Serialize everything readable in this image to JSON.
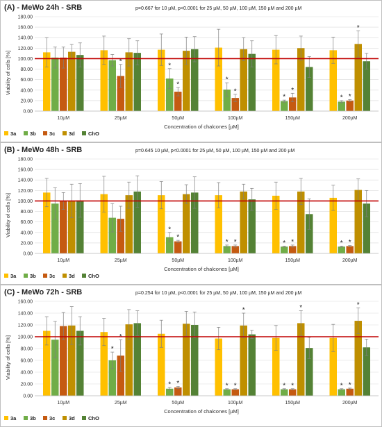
{
  "chart_data": [
    {
      "type": "bar",
      "title": "(A) - MeWo 24h - SRB",
      "subtitle": "p=0.667 for 10 µM, p<0.0001 for 25 µM, 50 µM, 100 µM, 150 µM and 200 µM",
      "xlabel": "Concentration of chalcones [µM]",
      "ylabel": "Viability of cells [%]",
      "ylim": [
        0,
        180
      ],
      "yticks": [
        "0.00",
        "20.00",
        "40.00",
        "60.00",
        "80.00",
        "100.00",
        "120.00",
        "140.00",
        "160.00",
        "180.00"
      ],
      "reference_line": 100,
      "categories": [
        "10µM",
        "25µM",
        "50µM",
        "100µM",
        "150µM",
        "200µM"
      ],
      "series": [
        {
          "name": "3a",
          "color": "#ffc000",
          "values": [
            112,
            116,
            117,
            121,
            117,
            116
          ],
          "errors": [
            28,
            27,
            30,
            35,
            27,
            25
          ]
        },
        {
          "name": "3b",
          "color": "#70ad47",
          "values": [
            102,
            97,
            62,
            41,
            19,
            18
          ],
          "errors": [
            20,
            11,
            19,
            13,
            2,
            2
          ]
        },
        {
          "name": "3c",
          "color": "#c55a11",
          "values": [
            102,
            67,
            37,
            25,
            26,
            20
          ],
          "errors": [
            20,
            22,
            8,
            7,
            8,
            2
          ]
        },
        {
          "name": "3d",
          "color": "#bf8f00",
          "values": [
            113,
            112,
            115,
            118,
            120,
            128
          ],
          "errors": [
            14,
            26,
            26,
            22,
            23,
            25
          ]
        },
        {
          "name": "ChO",
          "color": "#548235",
          "values": [
            107,
            111,
            118,
            109,
            84,
            95
          ],
          "errors": [
            23,
            23,
            24,
            25,
            20,
            15
          ]
        }
      ],
      "significant": [
        {
          "category": "25µM",
          "series": "3c"
        },
        {
          "category": "50µM",
          "series": "3b"
        },
        {
          "category": "50µM",
          "series": "3c"
        },
        {
          "category": "100µM",
          "series": "3b"
        },
        {
          "category": "100µM",
          "series": "3c"
        },
        {
          "category": "150µM",
          "series": "3b"
        },
        {
          "category": "150µM",
          "series": "3c"
        },
        {
          "category": "200µM",
          "series": "3b"
        },
        {
          "category": "200µM",
          "series": "3c"
        },
        {
          "category": "200µM",
          "series": "3d"
        }
      ],
      "legend": "bottom-left",
      "grid": true
    },
    {
      "type": "bar",
      "title": "(B) - MeWo 48h - SRB",
      "subtitle": "p=0.645 10 µM, p<0.0001 for 25 µM, 50 µM, 100 µM, 150 µM and 200 µM",
      "xlabel": "Concentration of chalcones [µM]",
      "ylabel": "Viability of cells [%]",
      "ylim": [
        0,
        180
      ],
      "yticks": [
        "0.00",
        "20.00",
        "40.00",
        "60.00",
        "80.00",
        "100.00",
        "120.00",
        "140.00",
        "160.00",
        "180.00"
      ],
      "reference_line": 100,
      "categories": [
        "10µM",
        "25µM",
        "50µM",
        "100µM",
        "150µM",
        "200µM"
      ],
      "series": [
        {
          "name": "3a",
          "color": "#ffc000",
          "values": [
            116,
            113,
            111,
            111,
            110,
            106
          ],
          "errors": [
            27,
            34,
            26,
            24,
            26,
            24
          ]
        },
        {
          "name": "3b",
          "color": "#70ad47",
          "values": [
            95,
            68,
            31,
            14,
            13,
            13
          ],
          "errors": [
            30,
            27,
            9,
            2,
            1,
            1
          ]
        },
        {
          "name": "3c",
          "color": "#c55a11",
          "values": [
            100,
            66,
            23,
            14,
            14,
            14
          ],
          "errors": [
            16,
            24,
            2,
            2,
            2,
            1
          ]
        },
        {
          "name": "3d",
          "color": "#bf8f00",
          "values": [
            100,
            111,
            113,
            118,
            118,
            121
          ],
          "errors": [
            32,
            25,
            18,
            14,
            25,
            21
          ]
        },
        {
          "name": "ChO",
          "color": "#548235",
          "values": [
            101,
            118,
            116,
            103,
            75,
            95
          ],
          "errors": [
            32,
            30,
            30,
            21,
            29,
            25
          ]
        }
      ],
      "significant": [
        {
          "category": "50µM",
          "series": "3b"
        },
        {
          "category": "50µM",
          "series": "3c"
        },
        {
          "category": "100µM",
          "series": "3b"
        },
        {
          "category": "100µM",
          "series": "3c"
        },
        {
          "category": "150µM",
          "series": "3b"
        },
        {
          "category": "150µM",
          "series": "3c"
        },
        {
          "category": "200µM",
          "series": "3b"
        },
        {
          "category": "200µM",
          "series": "3c"
        }
      ],
      "legend": "bottom-left",
      "grid": true
    },
    {
      "type": "bar",
      "title": "(C) - MeWo 72h - SRB",
      "subtitle": "p=0.254 for 10 µM, p<0.0001 for 25 µM, 50 µM, 100 µM, 150 µM and 200 µM",
      "xlabel": "Concentration of chalcones [µM]",
      "ylabel": "Viability of cells [%]",
      "ylim": [
        0,
        160
      ],
      "yticks": [
        "0.00",
        "20.00",
        "40.00",
        "60.00",
        "80.00",
        "100.00",
        "120.00",
        "140.00",
        "160.00"
      ],
      "reference_line": 100,
      "categories": [
        "10µM",
        "25µM",
        "50µM",
        "100µM",
        "150µM",
        "200µM"
      ],
      "series": [
        {
          "name": "3a",
          "color": "#ffc000",
          "values": [
            110,
            108,
            105,
            97,
            98,
            98
          ],
          "errors": [
            24,
            23,
            23,
            19,
            21,
            23
          ]
        },
        {
          "name": "3b",
          "color": "#70ad47",
          "values": [
            95,
            60,
            12,
            11,
            11,
            11
          ],
          "errors": [
            31,
            14,
            2,
            1,
            1,
            1
          ]
        },
        {
          "name": "3c",
          "color": "#c55a11",
          "values": [
            118,
            68,
            14,
            11,
            11,
            12
          ],
          "errors": [
            23,
            27,
            2,
            1,
            1,
            1
          ]
        },
        {
          "name": "3d",
          "color": "#bf8f00",
          "values": [
            119,
            121,
            122,
            119,
            123,
            127
          ],
          "errors": [
            32,
            25,
            21,
            21,
            21,
            22
          ]
        },
        {
          "name": "ChO",
          "color": "#548235",
          "values": [
            110,
            123,
            120,
            104,
            81,
            82
          ],
          "errors": [
            24,
            21,
            22,
            7,
            18,
            14
          ]
        }
      ],
      "significant": [
        {
          "category": "25µM",
          "series": "3b"
        },
        {
          "category": "25µM",
          "series": "3c"
        },
        {
          "category": "50µM",
          "series": "3b"
        },
        {
          "category": "50µM",
          "series": "3c"
        },
        {
          "category": "100µM",
          "series": "3b"
        },
        {
          "category": "100µM",
          "series": "3c"
        },
        {
          "category": "100µM",
          "series": "3d"
        },
        {
          "category": "150µM",
          "series": "3b"
        },
        {
          "category": "150µM",
          "series": "3c"
        },
        {
          "category": "150µM",
          "series": "3d"
        },
        {
          "category": "200µM",
          "series": "3b"
        },
        {
          "category": "200µM",
          "series": "3c"
        },
        {
          "category": "200µM",
          "series": "3d"
        }
      ],
      "legend": "bottom-left",
      "grid": true
    }
  ],
  "significance_marker": "*"
}
